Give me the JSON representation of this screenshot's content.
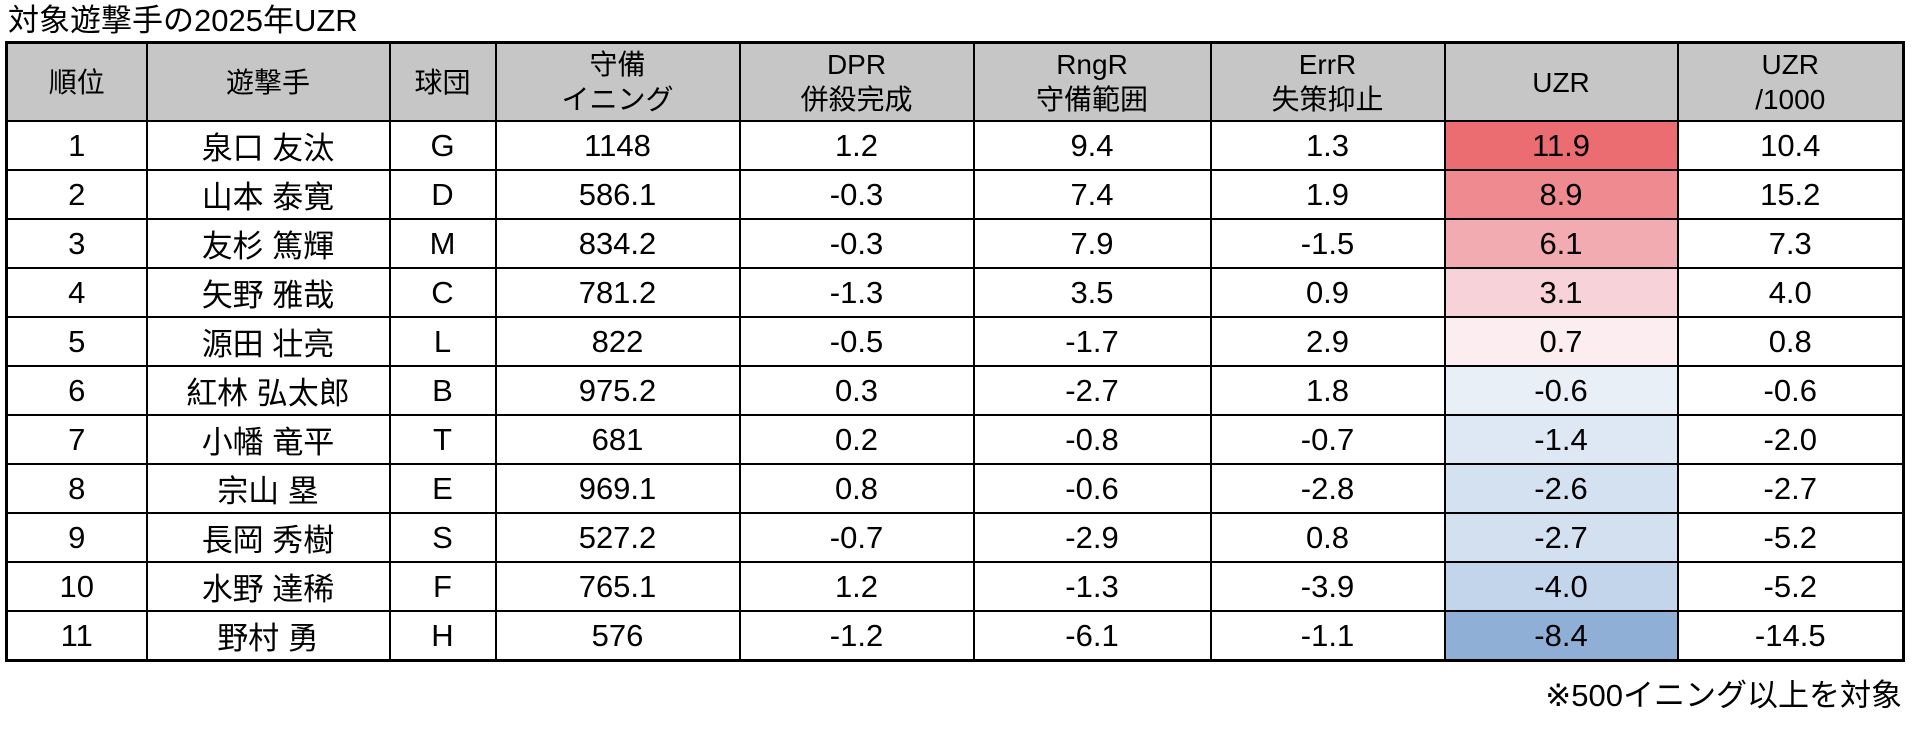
{
  "title": "対象遊撃手の2025年UZR",
  "footnote": "※500イニング以上を対象",
  "colors": {
    "header_bg": "#c6c6c6",
    "border": "#000000",
    "uzr_positive_strong": "#ec6d71",
    "uzr_negative_strong": "#8fafd7"
  },
  "chart_data": {
    "type": "table",
    "title": "対象遊撃手の2025年UZR",
    "note": "※500イニング以上を対象",
    "columns": [
      {
        "key": "rank",
        "label": "順位"
      },
      {
        "key": "player",
        "label": "遊撃手"
      },
      {
        "key": "team",
        "label": "球団"
      },
      {
        "key": "innings",
        "label": "守備\nイニング"
      },
      {
        "key": "dpr",
        "label": "DPR\n併殺完成"
      },
      {
        "key": "rngr",
        "label": "RngR\n守備範囲"
      },
      {
        "key": "errr",
        "label": "ErrR\n失策抑止"
      },
      {
        "key": "uzr",
        "label": "UZR"
      },
      {
        "key": "uzr1000",
        "label": "UZR\n/1000"
      }
    ],
    "rows": [
      {
        "rank": "1",
        "player": "泉口 友汰",
        "team": "G",
        "innings": "1148",
        "dpr": "1.2",
        "rngr": "9.4",
        "errr": "1.3",
        "uzr": "11.9",
        "uzr1000": "10.4",
        "uzr_bg": "#ec6d71"
      },
      {
        "rank": "2",
        "player": "山本 泰寛",
        "team": "D",
        "innings": "586.1",
        "dpr": "-0.3",
        "rngr": "7.4",
        "errr": "1.9",
        "uzr": "8.9",
        "uzr1000": "15.2",
        "uzr_bg": "#ef8b90"
      },
      {
        "rank": "3",
        "player": "友杉 篤輝",
        "team": "M",
        "innings": "834.2",
        "dpr": "-0.3",
        "rngr": "7.9",
        "errr": "-1.5",
        "uzr": "6.1",
        "uzr1000": "7.3",
        "uzr_bg": "#f2abb0"
      },
      {
        "rank": "4",
        "player": "矢野 雅哉",
        "team": "C",
        "innings": "781.2",
        "dpr": "-1.3",
        "rngr": "3.5",
        "errr": "0.9",
        "uzr": "3.1",
        "uzr1000": "4.0",
        "uzr_bg": "#f7d2d8"
      },
      {
        "rank": "5",
        "player": "源田 壮亮",
        "team": "L",
        "innings": "822",
        "dpr": "-0.5",
        "rngr": "-1.7",
        "errr": "2.9",
        "uzr": "0.7",
        "uzr1000": "0.8",
        "uzr_bg": "#fceef0"
      },
      {
        "rank": "6",
        "player": "紅林 弘太郎",
        "team": "B",
        "innings": "975.2",
        "dpr": "0.3",
        "rngr": "-2.7",
        "errr": "1.8",
        "uzr": "-0.6",
        "uzr1000": "-0.6",
        "uzr_bg": "#e8eff7"
      },
      {
        "rank": "7",
        "player": "小幡 竜平",
        "team": "T",
        "innings": "681",
        "dpr": "0.2",
        "rngr": "-0.8",
        "errr": "-0.7",
        "uzr": "-1.4",
        "uzr1000": "-2.0",
        "uzr_bg": "#dde8f4"
      },
      {
        "rank": "8",
        "player": "宗山 塁",
        "team": "E",
        "innings": "969.1",
        "dpr": "0.8",
        "rngr": "-0.6",
        "errr": "-2.8",
        "uzr": "-2.6",
        "uzr1000": "-2.7",
        "uzr_bg": "#d4e1f1"
      },
      {
        "rank": "9",
        "player": "長岡 秀樹",
        "team": "S",
        "innings": "527.2",
        "dpr": "-0.7",
        "rngr": "-2.9",
        "errr": "0.8",
        "uzr": "-2.7",
        "uzr1000": "-5.2",
        "uzr_bg": "#d2e0f0"
      },
      {
        "rank": "10",
        "player": "水野 達稀",
        "team": "F",
        "innings": "765.1",
        "dpr": "1.2",
        "rngr": "-1.3",
        "errr": "-3.9",
        "uzr": "-4.0",
        "uzr1000": "-5.2",
        "uzr_bg": "#c2d5ea"
      },
      {
        "rank": "11",
        "player": "野村 勇",
        "team": "H",
        "innings": "576",
        "dpr": "-1.2",
        "rngr": "-6.1",
        "errr": "-1.1",
        "uzr": "-8.4",
        "uzr1000": "-14.5",
        "uzr_bg": "#8fafd7"
      }
    ]
  }
}
